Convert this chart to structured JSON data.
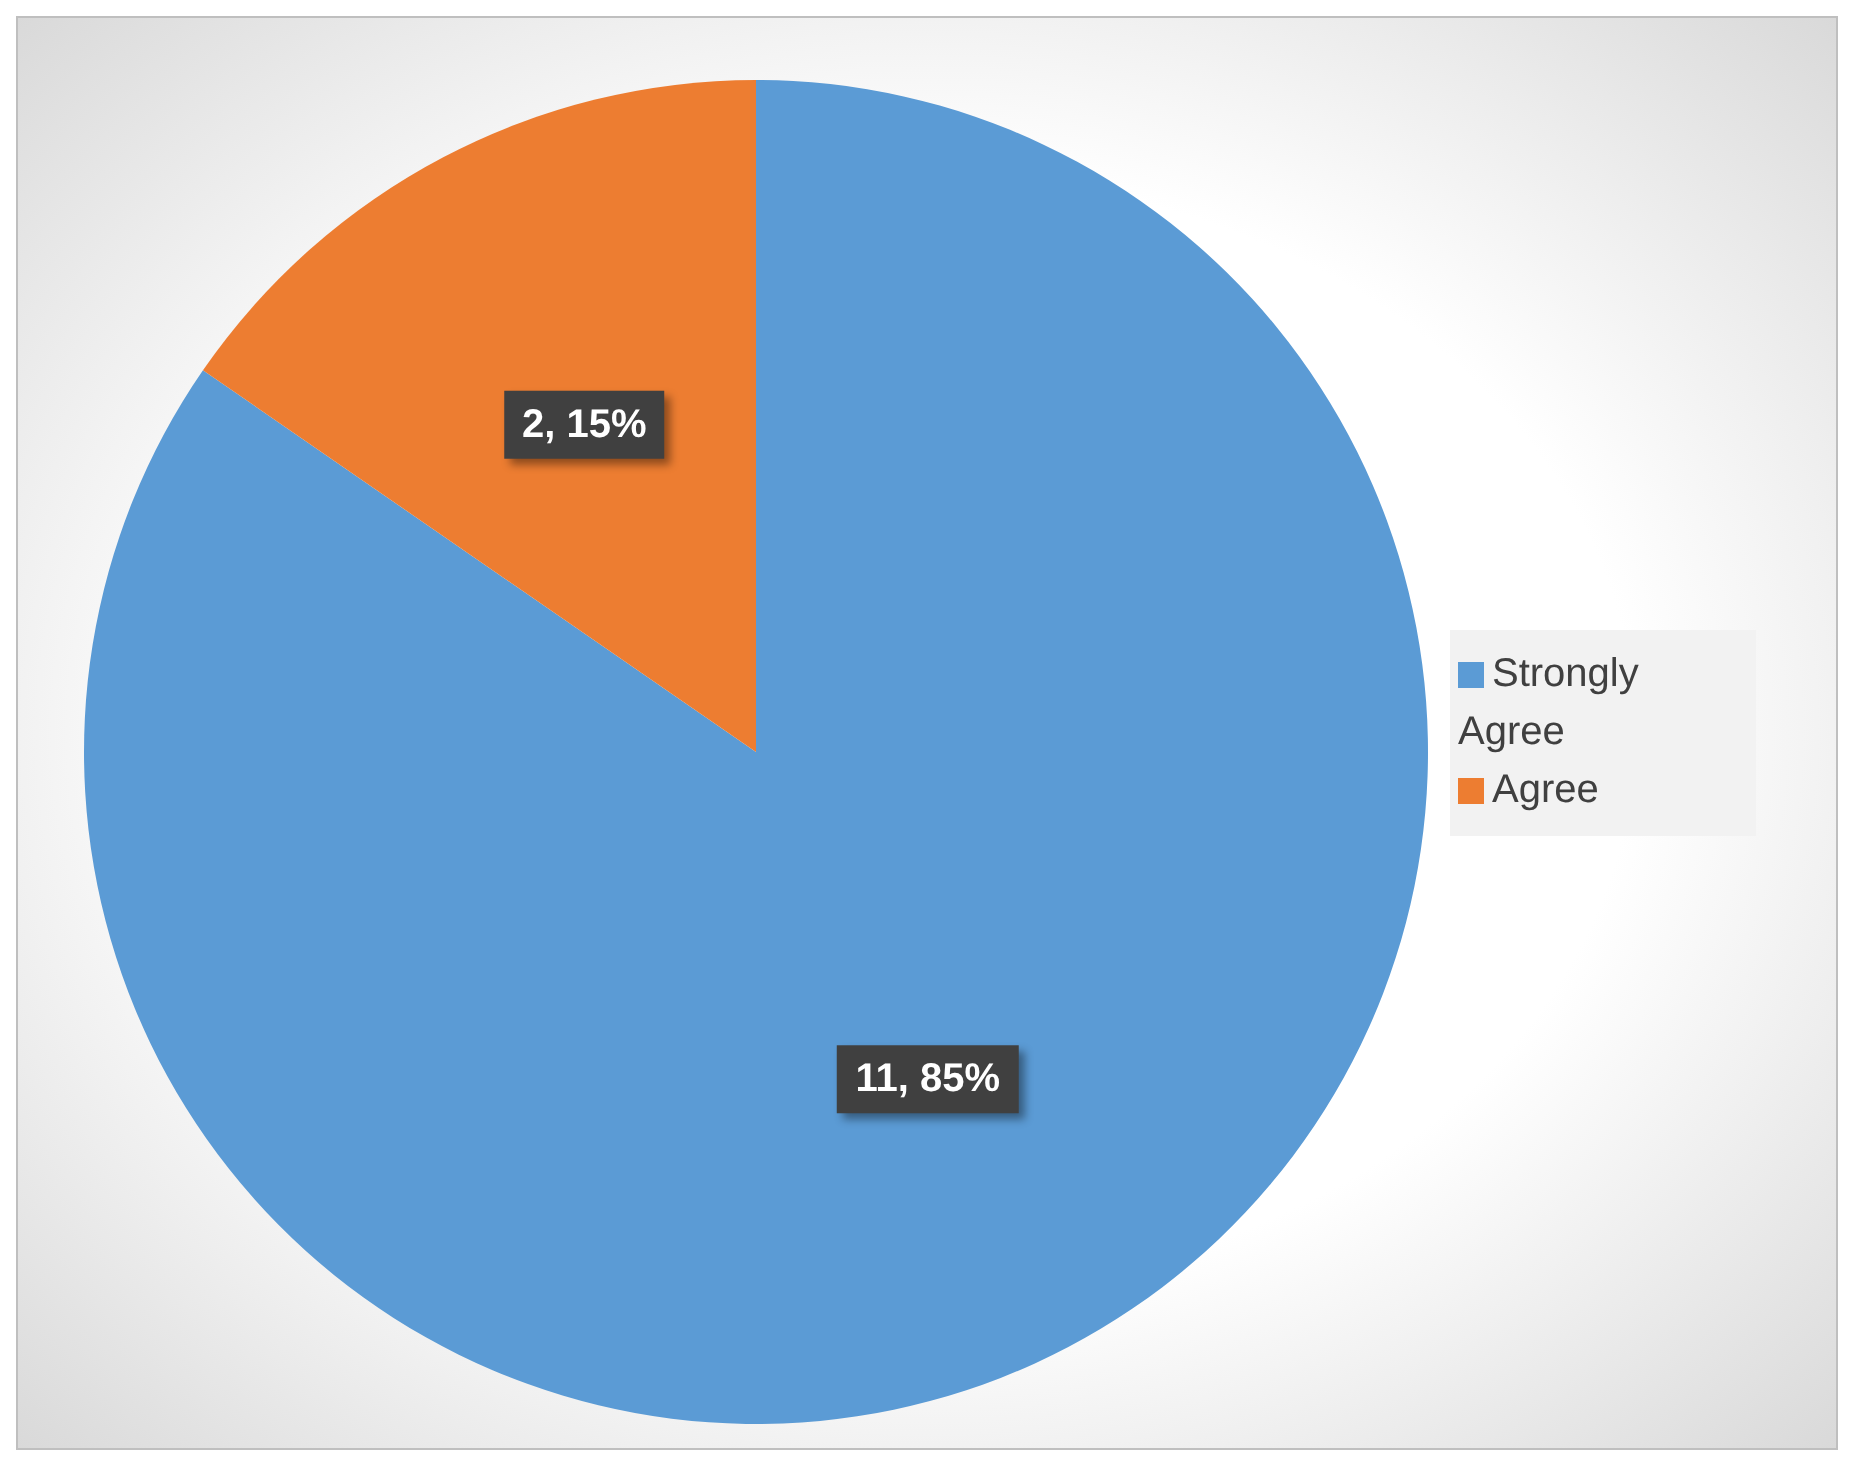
{
  "chart_data": {
    "type": "pie",
    "categories": [
      "Strongly Agree",
      "Agree"
    ],
    "values": [
      11,
      2
    ],
    "colors": [
      "#5b9bd5",
      "#ed7d31"
    ],
    "value_labels": [
      "11, 85%",
      "2, 15%"
    ],
    "legend": "right"
  }
}
